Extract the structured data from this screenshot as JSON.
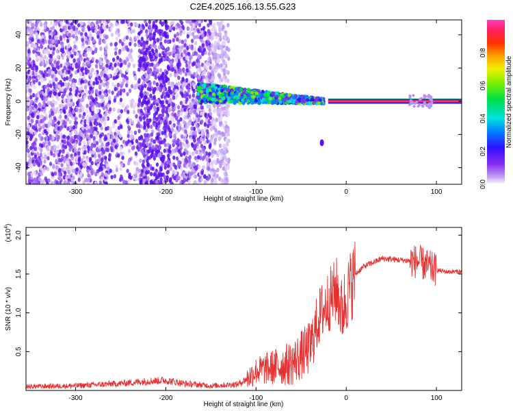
{
  "figure": {
    "title": "C2E4.2025.166.13.55.G23"
  },
  "chart_data": [
    {
      "type": "heatmap",
      "xlabel": "Height of straight line (km)",
      "ylabel": "Frequency (Hz)",
      "xlim": [
        -355,
        128
      ],
      "ylim": [
        -50,
        49
      ],
      "xticks": [
        -300,
        -200,
        -100,
        0,
        100
      ],
      "yticks": [
        -40,
        -20,
        0,
        20,
        40
      ],
      "grid": false,
      "colorbar": {
        "label": "Normalized spectral amplitude",
        "range": [
          0,
          1
        ],
        "ticks": [
          0.0,
          0.2,
          0.4,
          0.6,
          0.8
        ],
        "colormap": "rainbow (purple-blue-cyan-green-yellow-orange-red-magenta)"
      },
      "features": {
        "noise_region_x": [
          -355,
          -130
        ],
        "dense_noise_band_x": [
          -230,
          -195
        ],
        "blob_x": [
          -165,
          -25
        ],
        "blob_center_freq_hz": 5,
        "carrier_line_x": [
          -20,
          128
        ],
        "carrier_freq_hz": 0,
        "carrier_color": "#ff3060",
        "outlier_point": {
          "x": -27,
          "y": -25
        }
      }
    },
    {
      "type": "line",
      "xlabel": "Height of straight line (km)",
      "ylabel": "SNR (10 * v/v)",
      "y_multiplier": "(x10",
      "y_multiplier_exp": "4",
      "y_multiplier_close": ")",
      "xlim": [
        -355,
        128
      ],
      "ylim": [
        0,
        2.1
      ],
      "xticks": [
        -300,
        -200,
        -100,
        0,
        100
      ],
      "yticks": [
        0.5,
        1.0,
        1.5,
        2.0
      ],
      "ytick_labels": [
        "0.5",
        "1.0",
        "1.5",
        "2.0"
      ],
      "grid": false,
      "series": [
        {
          "color": "#e83030",
          "x": [
            -355,
            -300,
            -250,
            -220,
            -200,
            -180,
            -150,
            -120,
            -110,
            -100,
            -80,
            -60,
            -40,
            -30,
            -20,
            -10,
            -5,
            0,
            10,
            20,
            30,
            40,
            60,
            80,
            90,
            100,
            110,
            128
          ],
          "y": [
            0.05,
            0.06,
            0.09,
            0.12,
            0.13,
            0.09,
            0.06,
            0.08,
            0.15,
            0.25,
            0.3,
            0.35,
            0.55,
            0.95,
            1.15,
            1.3,
            1.0,
            1.2,
            1.5,
            1.6,
            1.65,
            1.7,
            1.68,
            1.66,
            1.6,
            1.55,
            1.53,
            1.53
          ]
        }
      ]
    }
  ]
}
